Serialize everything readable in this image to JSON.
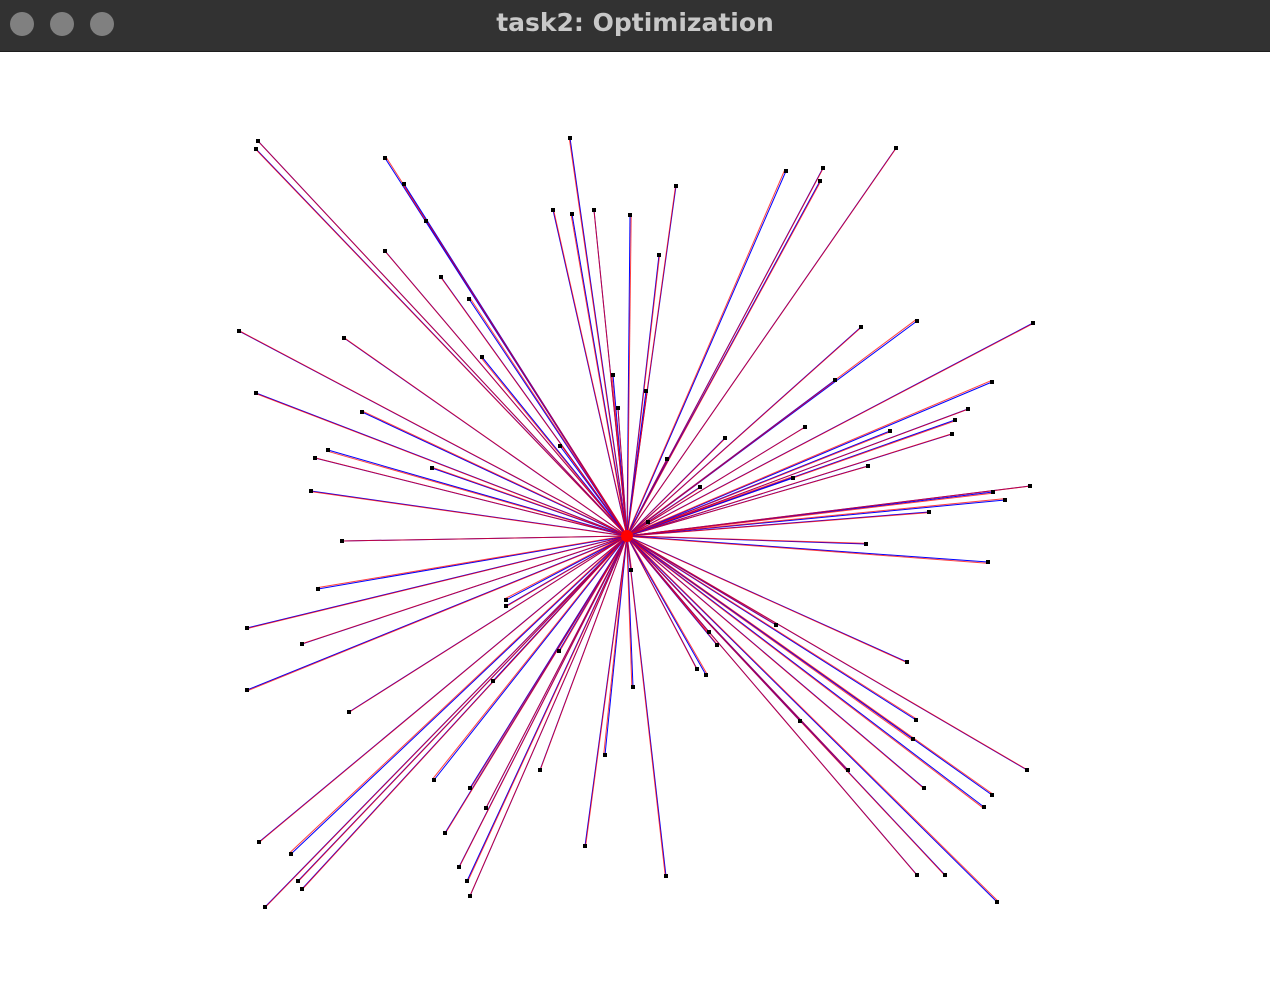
{
  "window": {
    "title": "task2: Optimization",
    "buttons": [
      {
        "name": "close",
        "color": "#808080"
      },
      {
        "name": "minimize",
        "color": "#808080"
      },
      {
        "name": "zoom",
        "color": "#808080"
      }
    ]
  },
  "colors": {
    "titlebar": "#323232",
    "title_text": "#c8c8c8",
    "background": "#ffffff",
    "line_primary": "#0000ff",
    "line_secondary": "#ff0000",
    "point": "#000000"
  },
  "icons": [
    "window-close-icon",
    "window-minimize-icon",
    "window-zoom-icon"
  ]
}
